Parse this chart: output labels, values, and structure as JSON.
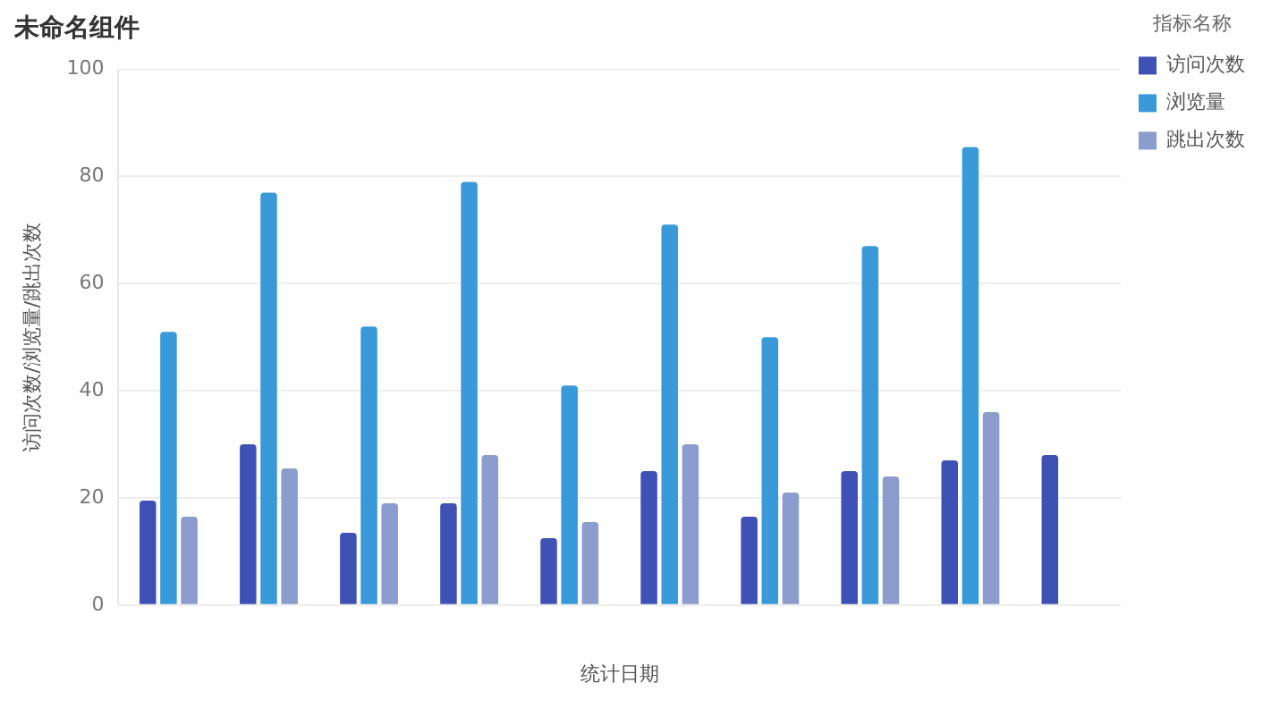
{
  "chart_data": {
    "type": "bar",
    "title": "未命名组件",
    "xlabel": "统计日期",
    "ylabel": "访问次数/浏览量/跳出次数",
    "legend_title": "指标名称",
    "categories": [
      null,
      null,
      null,
      null,
      null,
      null,
      null,
      null,
      null,
      null
    ],
    "series": [
      {
        "name": "访问次数",
        "color": "#3f51b5",
        "values": [
          19.5,
          30,
          13.5,
          19,
          12.5,
          25,
          16.5,
          25,
          27,
          28
        ]
      },
      {
        "name": "浏览量",
        "color": "#3a9ad9",
        "values": [
          51,
          77,
          52,
          79,
          41,
          71,
          50,
          67,
          85.5,
          null
        ]
      },
      {
        "name": "跳出次数",
        "color": "#8c9ccc",
        "values": [
          16.5,
          25.5,
          19,
          28,
          15.5,
          30,
          21,
          24,
          36,
          null
        ]
      }
    ],
    "ylim": [
      0,
      100
    ],
    "yticks": [
      0,
      20,
      40,
      60,
      80,
      100
    ],
    "grid": "y",
    "legend": "top right"
  }
}
